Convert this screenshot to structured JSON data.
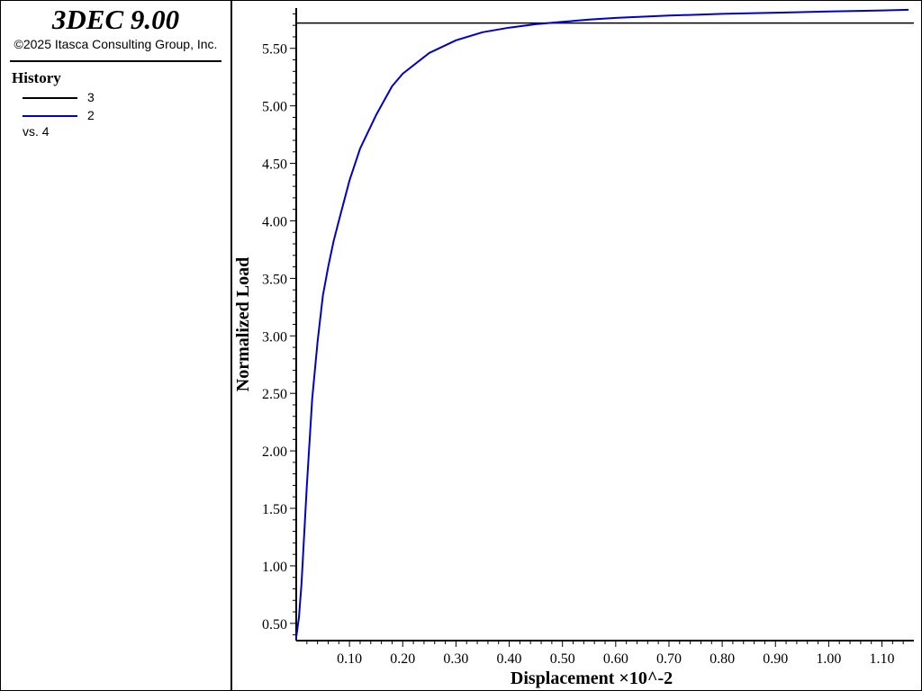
{
  "app": {
    "title": "3DEC 9.00",
    "copyright": "©2025 Itasca Consulting Group, Inc."
  },
  "legend": {
    "heading": "History",
    "items": [
      {
        "label": "3",
        "color": "#000000"
      },
      {
        "label": "2",
        "color": "#0000cc"
      }
    ],
    "vs_label": "vs. 4"
  },
  "chart_data": {
    "type": "line",
    "xlabel": "Displacement ×10^-2",
    "ylabel": "Normalized Load",
    "xlim": [
      0.0,
      1.16
    ],
    "ylim": [
      0.35,
      5.85
    ],
    "x_ticks": [
      "0.10",
      "0.20",
      "0.30",
      "0.40",
      "0.50",
      "0.60",
      "0.70",
      "0.80",
      "0.90",
      "1.00",
      "1.10"
    ],
    "y_ticks": [
      "0.50",
      "1.00",
      "1.50",
      "2.00",
      "2.50",
      "3.00",
      "3.50",
      "4.00",
      "4.50",
      "5.00",
      "5.50"
    ],
    "grid": false,
    "series": [
      {
        "name": "3",
        "color": "#000000",
        "x": [
          0.0,
          1.16
        ],
        "y": [
          5.72,
          5.72
        ]
      },
      {
        "name": "2",
        "color": "#0000cc",
        "x": [
          0.0,
          0.005,
          0.01,
          0.02,
          0.03,
          0.04,
          0.05,
          0.06,
          0.07,
          0.08,
          0.1,
          0.12,
          0.15,
          0.18,
          0.2,
          0.25,
          0.3,
          0.35,
          0.4,
          0.45,
          0.5,
          0.55,
          0.6,
          0.7,
          0.8,
          0.9,
          1.0,
          1.1,
          1.15
        ],
        "y": [
          0.38,
          0.55,
          0.85,
          1.7,
          2.45,
          2.95,
          3.35,
          3.6,
          3.82,
          4.0,
          4.35,
          4.63,
          4.92,
          5.17,
          5.28,
          5.46,
          5.57,
          5.64,
          5.68,
          5.71,
          5.73,
          5.75,
          5.765,
          5.785,
          5.8,
          5.81,
          5.82,
          5.83,
          5.835
        ]
      }
    ]
  }
}
